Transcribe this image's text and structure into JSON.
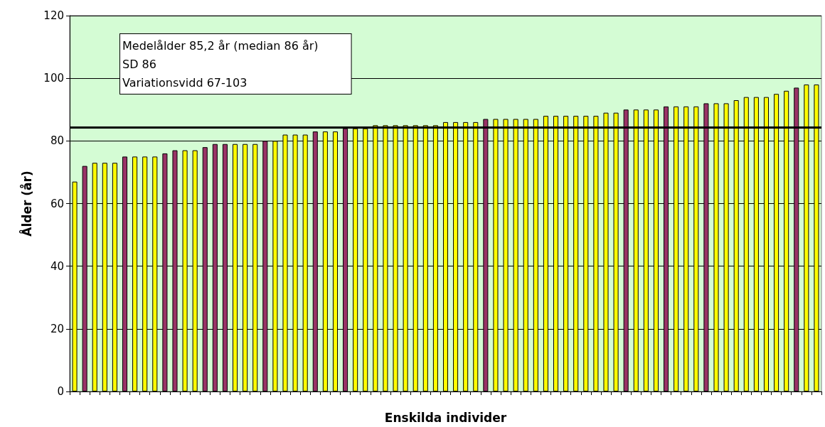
{
  "chart_data": {
    "type": "bar",
    "xlabel": "Enskilda individer",
    "ylabel": "Ålder (år)",
    "annotations": [
      "Medelålder 85,2 år (median 86 år)",
      "SD 86",
      "Variationsvidd 67-103"
    ],
    "categories": [
      null,
      null,
      null,
      null,
      null,
      null,
      null,
      null,
      null,
      null,
      null,
      null,
      null,
      null,
      null,
      null,
      null,
      null,
      null,
      null,
      null,
      null,
      null,
      null,
      null,
      null,
      null,
      null,
      null,
      null,
      null,
      null,
      null,
      null,
      null,
      null,
      null,
      null,
      null,
      null,
      null,
      null,
      null,
      null,
      null,
      null,
      null,
      null,
      null,
      null,
      null,
      null,
      null,
      null,
      null,
      null,
      null,
      null,
      null,
      null,
      null,
      null,
      null,
      null,
      null,
      null,
      null,
      null,
      null,
      null,
      null,
      null,
      null,
      null,
      null
    ],
    "values": [
      67,
      72,
      73,
      73,
      73,
      75,
      75,
      75,
      75,
      76,
      77,
      77,
      77,
      78,
      79,
      79,
      79,
      79,
      79,
      80,
      80,
      82,
      82,
      82,
      83,
      83,
      83,
      84,
      84,
      84,
      85,
      85,
      85,
      85,
      85,
      85,
      85,
      86,
      86,
      86,
      86,
      87,
      87,
      87,
      87,
      87,
      87,
      88,
      88,
      88,
      88,
      88,
      88,
      89,
      89,
      90,
      90,
      90,
      90,
      91,
      91,
      91,
      91,
      92,
      92,
      92,
      93,
      94,
      94,
      94,
      95,
      96,
      97,
      98,
      98
    ],
    "colors": [
      "#ffff00",
      "#993366",
      "#ffff00",
      "#ffff00",
      "#ffff00",
      "#993366",
      "#ffff00",
      "#ffff00",
      "#ffff00",
      "#993366",
      "#993366",
      "#ffff00",
      "#ffff00",
      "#993366",
      "#993366",
      "#993366",
      "#ffff00",
      "#ffff00",
      "#ffff00",
      "#993366",
      "#ffff00",
      "#ffff00",
      "#ffff00",
      "#ffff00",
      "#993366",
      "#ffff00",
      "#ffff00",
      "#993366",
      "#ffff00",
      "#ffff00",
      "#ffff00",
      "#ffff00",
      "#ffff00",
      "#ffff00",
      "#ffff00",
      "#ffff00",
      "#ffff00",
      "#ffff00",
      "#ffff00",
      "#ffff00",
      "#ffff00",
      "#993366",
      "#ffff00",
      "#ffff00",
      "#ffff00",
      "#ffff00",
      "#ffff00",
      "#ffff00",
      "#ffff00",
      "#ffff00",
      "#ffff00",
      "#ffff00",
      "#ffff00",
      "#ffff00",
      "#ffff00",
      "#993366",
      "#ffff00",
      "#ffff00",
      "#ffff00",
      "#993366",
      "#ffff00",
      "#ffff00",
      "#ffff00",
      "#993366",
      "#ffff00",
      "#ffff00",
      "#ffff00",
      "#ffff00",
      "#ffff00",
      "#ffff00",
      "#ffff00",
      "#ffff00",
      "#993366",
      "#ffff00",
      "#ffff00"
    ],
    "ylim": [
      0,
      120
    ],
    "yticks": [
      0,
      20,
      40,
      60,
      80,
      100,
      120
    ],
    "ref_lines": [
      {
        "axis": "y",
        "value": 84.3,
        "color": "#000000",
        "line_style": "solid"
      }
    ],
    "grid": "y"
  }
}
